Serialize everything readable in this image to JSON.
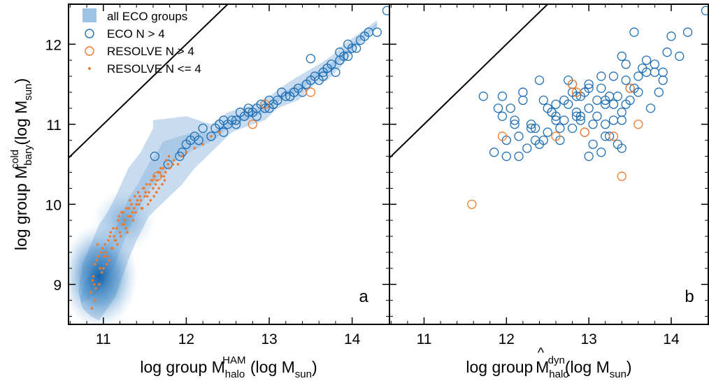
{
  "colors": {
    "blue": "#1f6fb4",
    "orange": "#ee7a2d",
    "fill_light": "#c9dcef",
    "axis": "#000000"
  },
  "legend": {
    "placement": "top-left",
    "entries": [
      {
        "label": "all ECO groups",
        "marker": "filled-square"
      },
      {
        "label": "ECO N > 4",
        "marker": "open-circle-blue"
      },
      {
        "label": "RESOLVE N > 4",
        "marker": "open-circle-orange"
      },
      {
        "label": "RESOLVE N <= 4",
        "marker": "dot-orange"
      }
    ]
  },
  "ylabel": {
    "main": "log group M",
    "sub": "bary",
    "sup": "cold",
    "unit_open": " (log M",
    "unit_sub": "sun",
    "unit_close": ")"
  },
  "panels": [
    {
      "label": "a",
      "xlabel": {
        "main": "log group M",
        "hat": "",
        "sub": "halo",
        "sup": "HAM",
        "unit_open": " (log M",
        "unit_sub": "sun",
        "unit_close": ")"
      }
    },
    {
      "label": "b",
      "xlabel": {
        "main": "log group ",
        "hat": "^",
        "sub": "halo",
        "sup": "dyn",
        "unit_open": "(log M",
        "unit_sub": "sun",
        "unit_close": ")"
      }
    }
  ],
  "chart_data": [
    {
      "type": "scatter",
      "panel": "a",
      "xlim": [
        10.58,
        14.45
      ],
      "ylim": [
        8.5,
        12.5
      ],
      "xticks": [
        "11",
        "12",
        "13",
        "14"
      ],
      "yticks": [
        "9",
        "10",
        "11",
        "12"
      ],
      "reference_line": "one-to-one",
      "density_region": {
        "upper": [
          [
            10.7,
            8.9
          ],
          [
            10.75,
            9.25
          ],
          [
            10.85,
            9.5
          ],
          [
            10.95,
            9.75
          ],
          [
            11.05,
            9.9
          ],
          [
            11.15,
            10.1
          ],
          [
            11.3,
            10.45
          ],
          [
            11.45,
            10.65
          ],
          [
            11.55,
            10.85
          ],
          [
            11.6,
            10.95
          ],
          [
            11.6,
            11.05
          ],
          [
            12.0,
            11.1
          ],
          [
            12.3,
            11.0
          ],
          [
            12.5,
            11.15
          ],
          [
            12.8,
            11.25
          ],
          [
            13.0,
            11.35
          ],
          [
            13.2,
            11.5
          ],
          [
            13.35,
            11.6
          ],
          [
            13.6,
            11.75
          ],
          [
            13.75,
            11.85
          ],
          [
            13.9,
            12.0
          ],
          [
            14.1,
            12.15
          ],
          [
            14.3,
            12.3
          ]
        ],
        "lower": [
          [
            14.3,
            12.2
          ],
          [
            14.05,
            11.95
          ],
          [
            13.85,
            11.7
          ],
          [
            13.7,
            11.55
          ],
          [
            13.55,
            11.5
          ],
          [
            13.35,
            11.3
          ],
          [
            13.1,
            11.2
          ],
          [
            12.95,
            11.05
          ],
          [
            12.8,
            11.0
          ],
          [
            12.55,
            10.9
          ],
          [
            12.35,
            10.7
          ],
          [
            12.1,
            10.45
          ],
          [
            11.95,
            10.25
          ],
          [
            11.75,
            10.05
          ],
          [
            11.55,
            9.85
          ],
          [
            11.4,
            9.55
          ],
          [
            11.3,
            9.3
          ],
          [
            11.2,
            9.0
          ],
          [
            11.15,
            8.85
          ],
          [
            11.05,
            8.7
          ],
          [
            10.95,
            8.55
          ],
          [
            10.85,
            8.6
          ],
          [
            10.75,
            8.7
          ]
        ]
      },
      "series": [
        {
          "name": "ECO N > 4",
          "style": "open-circle",
          "x": [
            11.62,
            11.78,
            11.92,
            11.95,
            12.0,
            12.05,
            12.1,
            12.2,
            12.3,
            12.35,
            12.4,
            12.45,
            12.5,
            12.55,
            12.6,
            12.65,
            12.7,
            12.75,
            12.8,
            12.85,
            12.9,
            12.95,
            13.0,
            13.05,
            13.1,
            13.15,
            13.2,
            13.25,
            13.3,
            13.35,
            13.4,
            13.45,
            13.5,
            13.55,
            13.6,
            13.65,
            13.7,
            13.75,
            13.8,
            13.85,
            13.9,
            13.95,
            14.0,
            14.05,
            14.1,
            14.15,
            14.2,
            14.3,
            14.42,
            12.6,
            12.85,
            13.05,
            13.25,
            13.5,
            13.65,
            13.85,
            12.15,
            12.45,
            12.75,
            13.0,
            13.3,
            13.7,
            13.95
          ],
          "y": [
            10.6,
            10.5,
            10.6,
            10.65,
            10.75,
            10.8,
            10.85,
            10.95,
            10.85,
            10.95,
            11.0,
            11.05,
            11.0,
            11.05,
            11.0,
            11.15,
            11.1,
            11.2,
            11.15,
            11.2,
            11.25,
            11.2,
            11.3,
            11.25,
            11.3,
            11.4,
            11.35,
            11.35,
            11.4,
            11.45,
            11.4,
            11.5,
            11.55,
            11.6,
            11.55,
            11.65,
            11.7,
            11.75,
            11.65,
            11.8,
            11.85,
            11.85,
            11.95,
            11.95,
            12.05,
            12.1,
            12.15,
            12.15,
            12.42,
            11.05,
            11.1,
            11.25,
            11.35,
            11.82,
            11.6,
            11.9,
            10.8,
            10.9,
            11.15,
            11.2,
            11.4,
            11.7,
            12.0
          ]
        },
        {
          "name": "RESOLVE N > 4",
          "style": "open-circle",
          "x": [
            11.65,
            12.8,
            12.95,
            13.5
          ],
          "y": [
            10.35,
            11.0,
            11.25,
            11.4
          ]
        },
        {
          "name": "RESOLVE N <= 4",
          "style": "dot",
          "x": [
            10.85,
            10.88,
            10.9,
            10.92,
            10.95,
            10.97,
            11.0,
            11.02,
            11.05,
            11.08,
            11.1,
            11.12,
            11.15,
            11.18,
            11.2,
            11.22,
            11.25,
            11.28,
            11.3,
            11.32,
            11.35,
            11.38,
            11.4,
            11.42,
            11.45,
            11.48,
            11.5,
            11.52,
            11.55,
            11.58,
            11.6,
            11.62,
            11.65,
            11.68,
            11.7,
            11.72,
            11.75,
            11.78,
            11.8,
            11.85,
            11.9,
            11.95,
            12.0,
            12.1,
            12.2,
            12.3,
            12.4,
            10.86,
            10.9,
            10.93,
            10.98,
            11.03,
            11.07,
            11.13,
            11.17,
            11.23,
            11.27,
            11.33,
            11.37,
            11.43,
            11.47,
            11.53,
            11.57,
            11.63,
            11.67,
            11.73,
            10.87,
            10.91,
            10.96,
            11.01,
            11.06,
            11.11,
            11.16,
            11.21,
            11.26,
            11.31,
            11.36,
            11.41,
            11.46,
            11.51,
            11.56,
            11.61,
            11.66,
            11.71,
            11.76,
            10.89,
            10.94,
            10.99,
            11.04,
            11.09,
            11.14,
            11.19,
            11.24,
            11.29,
            11.34,
            11.39,
            11.44,
            11.49,
            11.54,
            11.59,
            11.64,
            11.69,
            11.74,
            11.79,
            11.84
          ],
          "y": [
            8.9,
            9.1,
            8.8,
            9.3,
            9.0,
            9.4,
            9.2,
            9.5,
            9.35,
            9.6,
            9.45,
            9.7,
            9.55,
            9.8,
            9.65,
            9.9,
            9.75,
            9.95,
            9.85,
            10.05,
            9.9,
            10.1,
            10.0,
            10.15,
            10.05,
            10.2,
            10.1,
            10.25,
            10.15,
            10.3,
            10.2,
            10.35,
            10.3,
            10.4,
            10.35,
            10.45,
            10.4,
            10.5,
            10.45,
            10.55,
            10.5,
            10.6,
            10.65,
            10.7,
            10.75,
            10.85,
            10.9,
            8.7,
            9.25,
            9.5,
            9.15,
            9.4,
            9.3,
            9.6,
            9.5,
            9.75,
            9.7,
            9.85,
            9.95,
            10.0,
            9.95,
            10.1,
            10.05,
            10.25,
            10.2,
            10.35,
            9.05,
            8.95,
            9.2,
            9.35,
            9.55,
            9.45,
            9.7,
            9.6,
            9.8,
            9.95,
            9.8,
            10.05,
            9.95,
            10.15,
            10.25,
            10.1,
            10.4,
            10.25,
            10.55,
            9.0,
            9.35,
            9.45,
            9.25,
            9.65,
            9.55,
            9.85,
            9.9,
            9.65,
            10.0,
            9.9,
            10.1,
            10.2,
            10.0,
            10.3,
            10.15,
            10.45,
            10.3,
            10.6,
            10.5
          ]
        }
      ]
    },
    {
      "type": "scatter",
      "panel": "b",
      "xlim": [
        10.58,
        14.45
      ],
      "ylim": [
        8.5,
        12.5
      ],
      "xticks": [
        "11",
        "12",
        "13",
        "14"
      ],
      "yticks": [],
      "reference_line": "one-to-one",
      "series": [
        {
          "name": "ECO N > 4",
          "style": "open-circle",
          "x": [
            11.72,
            11.85,
            11.9,
            11.95,
            12.0,
            12.05,
            12.1,
            12.15,
            12.2,
            12.25,
            12.3,
            12.35,
            12.4,
            12.45,
            12.5,
            12.55,
            12.6,
            12.65,
            12.7,
            12.75,
            12.8,
            12.85,
            12.9,
            12.95,
            13.0,
            13.05,
            13.1,
            13.15,
            13.2,
            13.25,
            13.3,
            13.35,
            13.4,
            13.45,
            13.5,
            13.55,
            13.6,
            13.65,
            13.7,
            13.75,
            13.8,
            13.85,
            13.9,
            13.95,
            14.0,
            14.1,
            14.2,
            14.42,
            11.95,
            12.1,
            12.3,
            12.5,
            12.7,
            12.9,
            13.1,
            13.3,
            13.5,
            13.7,
            13.9,
            12.2,
            12.4,
            12.6,
            12.8,
            13.0,
            13.2,
            13.4,
            13.6,
            13.8,
            12.45,
            12.65,
            12.85,
            13.05,
            13.25,
            13.45,
            12.75,
            12.95,
            13.15,
            13.35,
            13.55,
            12.55,
            12.85,
            13.15,
            13.45,
            13.0,
            13.2,
            13.4,
            12.9,
            13.3,
            12.0,
            12.15,
            12.35,
            12.6,
            12.8,
            13.0,
            13.2,
            13.4
          ],
          "y": [
            11.35,
            10.65,
            11.2,
            11.35,
            10.8,
            11.2,
            11.05,
            10.6,
            11.4,
            10.7,
            11.0,
            10.95,
            10.75,
            11.3,
            10.9,
            11.15,
            11.1,
            10.8,
            11.05,
            11.25,
            11.4,
            11.1,
            11.35,
            10.9,
            11.5,
            10.75,
            11.1,
            11.45,
            11.25,
            10.85,
            11.05,
            11.35,
            11.15,
            11.55,
            11.3,
            12.15,
            11.6,
            11.7,
            11.65,
            11.2,
            11.75,
            11.4,
            11.55,
            11.9,
            12.1,
            11.85,
            12.15,
            12.42,
            11.1,
            11.0,
            10.95,
            11.2,
            11.3,
            11.05,
            11.3,
            11.6,
            11.45,
            11.8,
            11.65,
            11.3,
            11.55,
            11.25,
            11.5,
            11.2,
            11.0,
            11.85,
            11.4,
            11.65,
            10.8,
            10.95,
            11.15,
            11.0,
            11.35,
            11.25,
            11.55,
            11.4,
            10.65,
            10.75,
            11.45,
            11.15,
            11.35,
            11.6,
            11.75,
            10.6,
            10.85,
            10.7,
            11.1,
            11.25,
            10.6,
            10.85,
            10.8,
            11.05,
            10.95,
            11.45,
            11.3,
            11.05
          ]
        },
        {
          "name": "RESOLVE N > 4",
          "style": "open-circle",
          "x": [
            11.58,
            11.95,
            12.6,
            12.8,
            12.85,
            12.95,
            13.3,
            13.4,
            13.5,
            13.6
          ],
          "y": [
            10.0,
            10.85,
            10.85,
            11.5,
            11.4,
            10.9,
            10.85,
            10.35,
            11.45,
            11.0
          ]
        }
      ]
    }
  ]
}
